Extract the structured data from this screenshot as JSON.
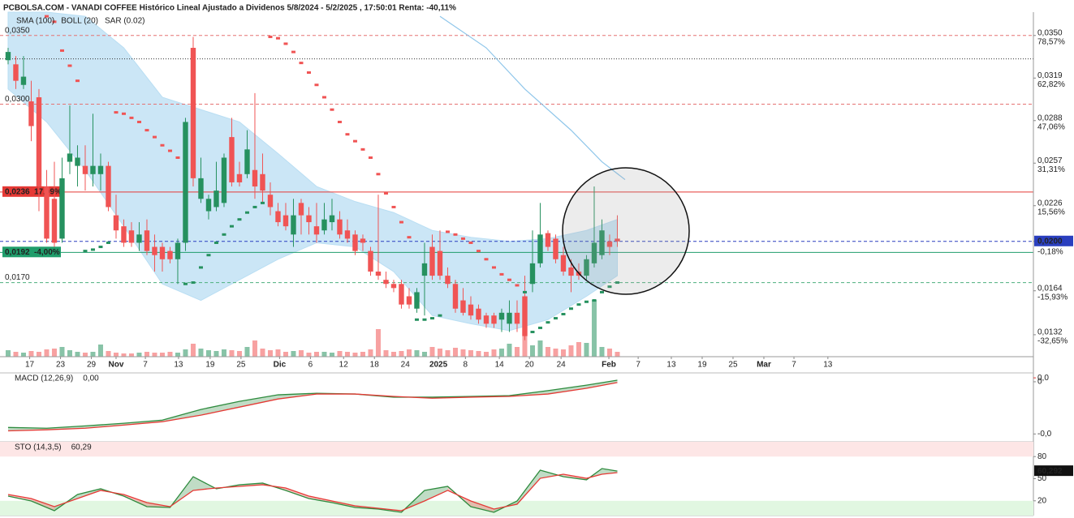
{
  "chart_data": [
    {
      "type": "candlestick",
      "title": "PCBOLSA.COM - VANADI COFFEE Histórico Lineal Ajustado a Dividenos 5/8/2024 - 5/2/2025 , 17:50:01 Renta: -40,11%",
      "up_color": "#26915f",
      "down_color": "#f05454",
      "open": [
        0.0332,
        0.0329,
        0.0314,
        0.0302,
        0.0305,
        0.024,
        0.0231,
        0.0202,
        0.0258,
        0.0255,
        0.0255,
        0.0249,
        0.0249,
        0.0255,
        0.0219,
        0.0211,
        0.0208,
        0.0199,
        0.0208,
        0.0196,
        0.0196,
        0.0193,
        0.0187,
        0.0199,
        0.0341,
        0.0231,
        0.0222,
        0.0225,
        0.0228,
        0.0276,
        0.0249,
        0.0249,
        0.0252,
        0.0249,
        0.0234,
        0.0222,
        0.0219,
        0.0205,
        0.0228,
        0.0219,
        0.0211,
        0.0208,
        0.0214,
        0.0216,
        0.0208,
        0.0205,
        0.0202,
        0.0193,
        0.0178,
        0.0172,
        0.0169,
        0.0169,
        0.016,
        0.0151,
        0.0175,
        0.0196,
        0.0193,
        0.0175,
        0.0169,
        0.0157,
        0.0154,
        0.0151,
        0.0146,
        0.0146,
        0.0143,
        0.014,
        0.0148,
        0.016,
        0.0169,
        0.0184,
        0.0206,
        0.0202,
        0.019,
        0.0181,
        0.0178,
        0.0175,
        0.0184,
        0.019,
        0.02,
        0.0202
      ],
      "high": [
        0.0341,
        0.0335,
        0.0335,
        0.0317,
        0.0311,
        0.0252,
        0.0258,
        0.0261,
        0.0299,
        0.027,
        0.027,
        0.0293,
        0.0264,
        0.0258,
        0.0234,
        0.0216,
        0.0214,
        0.0214,
        0.0216,
        0.0205,
        0.0199,
        0.0196,
        0.0202,
        0.029,
        0.0349,
        0.0261,
        0.0234,
        0.0258,
        0.0264,
        0.029,
        0.0258,
        0.0281,
        0.0308,
        0.0264,
        0.0243,
        0.0228,
        0.0228,
        0.0231,
        0.0231,
        0.0225,
        0.0228,
        0.0228,
        0.0231,
        0.0222,
        0.0216,
        0.0208,
        0.0205,
        0.0196,
        0.0234,
        0.0178,
        0.0172,
        0.0172,
        0.0166,
        0.0166,
        0.0199,
        0.0205,
        0.0208,
        0.0181,
        0.0172,
        0.0166,
        0.016,
        0.0154,
        0.0148,
        0.0148,
        0.0151,
        0.0157,
        0.0157,
        0.0175,
        0.0208,
        0.0228,
        0.0208,
        0.0205,
        0.0196,
        0.0187,
        0.0184,
        0.019,
        0.024,
        0.0216,
        0.0205,
        0.0219
      ],
      "low": [
        0.0329,
        0.0311,
        0.0311,
        0.0273,
        0.0222,
        0.0199,
        0.0196,
        0.0199,
        0.0249,
        0.024,
        0.0237,
        0.024,
        0.0237,
        0.0222,
        0.0202,
        0.0196,
        0.0196,
        0.0193,
        0.019,
        0.0178,
        0.0178,
        0.0184,
        0.0169,
        0.0193,
        0.024,
        0.0228,
        0.0216,
        0.0222,
        0.0225,
        0.024,
        0.024,
        0.0246,
        0.0231,
        0.0228,
        0.0219,
        0.0211,
        0.0208,
        0.0196,
        0.0205,
        0.0205,
        0.0199,
        0.0205,
        0.0208,
        0.0202,
        0.0199,
        0.019,
        0.0193,
        0.0175,
        0.0172,
        0.0166,
        0.0163,
        0.0151,
        0.0151,
        0.0148,
        0.0146,
        0.0172,
        0.0172,
        0.0166,
        0.0148,
        0.0146,
        0.0143,
        0.014,
        0.0137,
        0.0137,
        0.0134,
        0.0134,
        0.0134,
        0.0128,
        0.0163,
        0.0181,
        0.0193,
        0.0184,
        0.0175,
        0.0163,
        0.0172,
        0.0172,
        0.0181,
        0.0187,
        0.019,
        0.0196
      ],
      "close": [
        0.0338,
        0.0317,
        0.032,
        0.0284,
        0.024,
        0.0202,
        0.0199,
        0.0246,
        0.0264,
        0.0261,
        0.0249,
        0.0255,
        0.0255,
        0.0225,
        0.0208,
        0.0199,
        0.0199,
        0.0205,
        0.0193,
        0.019,
        0.0187,
        0.0187,
        0.0199,
        0.0287,
        0.0246,
        0.0246,
        0.0231,
        0.0237,
        0.0261,
        0.0243,
        0.0243,
        0.0267,
        0.024,
        0.0237,
        0.0225,
        0.0214,
        0.0211,
        0.0219,
        0.0219,
        0.0214,
        0.0205,
        0.0216,
        0.0219,
        0.0205,
        0.0202,
        0.0193,
        0.0199,
        0.0178,
        0.0175,
        0.0169,
        0.0166,
        0.0154,
        0.0154,
        0.0163,
        0.0184,
        0.0175,
        0.0175,
        0.0169,
        0.0151,
        0.0148,
        0.0146,
        0.0143,
        0.014,
        0.014,
        0.0148,
        0.0148,
        0.014,
        0.0131,
        0.0184,
        0.0205,
        0.0196,
        0.0187,
        0.0178,
        0.0175,
        0.0175,
        0.0187,
        0.0199,
        0.0208,
        0.0196,
        0.02
      ],
      "volume": [
        8,
        6,
        5,
        7,
        6,
        9,
        10,
        12,
        8,
        6,
        5,
        6,
        15,
        7,
        5,
        4,
        4,
        5,
        6,
        5,
        5,
        6,
        5,
        9,
        16,
        10,
        8,
        7,
        9,
        8,
        7,
        12,
        20,
        10,
        8,
        9,
        6,
        7,
        8,
        5,
        6,
        6,
        5,
        7,
        6,
        5,
        6,
        9,
        34,
        8,
        6,
        7,
        9,
        8,
        6,
        12,
        10,
        8,
        11,
        9,
        8,
        7,
        6,
        9,
        10,
        16,
        12,
        30,
        14,
        20,
        12,
        10,
        9,
        14,
        18,
        17,
        70,
        12,
        10,
        6
      ],
      "xlim": [
        -1.05,
        132.95
      ],
      "xticks": [
        {
          "value": 2.8,
          "label": "17"
        },
        {
          "value": 6.8,
          "label": "23"
        },
        {
          "value": 10.8,
          "label": "29"
        },
        {
          "value": 14,
          "label": "Nov"
        },
        {
          "value": 17.8,
          "label": "7"
        },
        {
          "value": 22.1,
          "label": "13"
        },
        {
          "value": 26.2,
          "label": "19"
        },
        {
          "value": 30.2,
          "label": "25"
        },
        {
          "value": 35.2,
          "label": "Dic"
        },
        {
          "value": 39.2,
          "label": "6"
        },
        {
          "value": 43.5,
          "label": "12"
        },
        {
          "value": 47.5,
          "label": "18"
        },
        {
          "value": 51.5,
          "label": "24"
        },
        {
          "value": 55.8,
          "label": "2025"
        },
        {
          "value": 59.3,
          "label": "8"
        },
        {
          "value": 63.7,
          "label": "14"
        },
        {
          "value": 67.6,
          "label": "20"
        },
        {
          "value": 71.7,
          "label": "24"
        },
        {
          "value": 77.9,
          "label": "Feb"
        },
        {
          "value": 81.7,
          "label": "7"
        },
        {
          "value": 86,
          "label": "13"
        },
        {
          "value": 90,
          "label": "19"
        },
        {
          "value": 94,
          "label": "25"
        },
        {
          "value": 98,
          "label": "Mar"
        },
        {
          "value": 101.9,
          "label": "7"
        },
        {
          "value": 106.3,
          "label": "13"
        }
      ],
      "ylim": [
        0.0116,
        0.0367
      ],
      "yticks": [
        {
          "value": 0.035,
          "label": "0,0350"
        },
        {
          "value": 0.0319,
          "label": "0,0319"
        },
        {
          "value": 0.0288,
          "label": "0,0288"
        },
        {
          "value": 0.0257,
          "label": "0,0257"
        },
        {
          "value": 0.0226,
          "label": "0,0226"
        },
        {
          "value": 0.02,
          "label": "0,0200"
        },
        {
          "value": 0.0164,
          "label": "0,0164"
        },
        {
          "value": 0.0132,
          "label": "0,0132"
        }
      ],
      "ytick_sublabels": [
        "78,57%",
        "62,82%",
        "47,06%",
        "31,31%",
        "15,56%",
        "-0,18%",
        "-15,93%",
        "-32,65%"
      ],
      "highlight_tick": 5,
      "levels": [
        {
          "value": 0.035,
          "label": "0,0350",
          "color": "#e57373",
          "style": "dashed"
        },
        {
          "value": 0.0333,
          "color": "#333333",
          "style": "dotted"
        },
        {
          "value": 0.03,
          "label": "0,0300",
          "color": "#e57373",
          "style": "dashed"
        },
        {
          "value": 0.0236,
          "label": "0,0236",
          "note": "17,99%",
          "color": "#e53935",
          "style": "solid"
        },
        {
          "value": 0.02,
          "color": "#2a3fbf",
          "style": "dashed"
        },
        {
          "value": 0.0192,
          "label": "0,0192",
          "note": "-4,00%",
          "color": "#1f9d6b",
          "style": "solid"
        },
        {
          "value": 0.017,
          "label": "0,0170",
          "color": "#4caf7d",
          "style": "dashed"
        }
      ],
      "overlays": [
        {
          "name": "SMA (100)",
          "type": "line",
          "color": "#8fc6ea",
          "x": [
            56,
            62,
            67,
            73,
            77,
            80
          ],
          "values": [
            0.0364,
            0.0341,
            0.0311,
            0.0281,
            0.0258,
            0.0245
          ]
        },
        {
          "name": "BOLL (20)",
          "type": "band",
          "color": "#b9def3",
          "x": [
            0,
            5,
            10,
            15,
            20,
            25,
            30,
            35,
            40,
            45,
            50,
            55,
            60,
            65,
            70,
            75,
            79
          ],
          "upper": [
            0.0367,
            0.0367,
            0.0364,
            0.0341,
            0.0305,
            0.0296,
            0.0287,
            0.0264,
            0.024,
            0.0229,
            0.0221,
            0.0208,
            0.0203,
            0.02,
            0.0202,
            0.0208,
            0.0216
          ],
          "lower": [
            0.0311,
            0.0287,
            0.0252,
            0.0211,
            0.0169,
            0.0157,
            0.0172,
            0.0187,
            0.0199,
            0.0196,
            0.0178,
            0.0146,
            0.014,
            0.0135,
            0.0143,
            0.016,
            0.0175
          ]
        },
        {
          "name": "SAR (0.02)",
          "type": "dots",
          "color": "#1e8e3e",
          "values": [
            null,
            null,
            null,
            null,
            null,
            0.0364,
            0.036,
            0.0339,
            0.0328,
            0.0317,
            0.0193,
            0.0194,
            0.0196,
            0.0199,
            0.0294,
            0.0293,
            0.029,
            0.0287,
            0.0281,
            0.0276,
            0.027,
            0.0266,
            0.0261,
            0.0169,
            0.017,
            0.0181,
            0.019,
            0.0199,
            0.0205,
            0.0211,
            0.0216,
            0.0221,
            0.0225,
            0.0228,
            0.0349,
            0.0348,
            0.0344,
            0.0338,
            0.033,
            0.0323,
            0.0314,
            0.0305,
            0.0296,
            0.0287,
            0.0278,
            0.0273,
            0.0267,
            0.0261,
            0.0249,
            0.0235,
            0.0225,
            0.0214,
            0.0203,
            0.0143,
            0.0143,
            0.0144,
            0.0146,
            0.0207,
            0.0205,
            0.0202,
            0.0199,
            0.0193,
            0.0187,
            0.0181,
            0.0176,
            0.0172,
            0.0168,
            0.0163,
            0.0134,
            0.0137,
            0.0141,
            0.0144,
            0.0147,
            0.0151,
            0.0154,
            0.0156,
            0.0157,
            0.0163,
            0.0167,
            0.017
          ]
        }
      ]
    },
    {
      "type": "macd",
      "label": "MACD (12,26,9)",
      "value_label": "0,00",
      "x": [
        0,
        5,
        10,
        15,
        20,
        25,
        30,
        35,
        40,
        45,
        50,
        55,
        60,
        65,
        70,
        75,
        79
      ],
      "series": [
        {
          "color": "#2e8b3e",
          "values": [
            -0.00175,
            -0.00178,
            -0.00169,
            -0.00159,
            -0.00147,
            -0.00106,
            -0.00075,
            -0.0005,
            -0.00044,
            -0.00047,
            -0.00059,
            -0.00059,
            -0.00056,
            -0.00053,
            -0.00034,
            -0.00013,
            6e-05
          ]
        },
        {
          "color": "#e53935",
          "values": [
            -0.00188,
            -0.00184,
            -0.00178,
            -0.00166,
            -0.00153,
            -0.00128,
            -0.00097,
            -0.00066,
            -0.00047,
            -0.00047,
            -0.00056,
            -0.00063,
            -0.00059,
            -0.00056,
            -0.00047,
            -0.00025,
            -3e-05
          ]
        }
      ],
      "ylim": [
        -0.0023,
        0.00034
      ],
      "yticks": [
        {
          "value": 0,
          "label": "0"
        },
        {
          "value": -0.002,
          "label": "-0,0"
        }
      ],
      "last_label": {
        "value": 0.00015,
        "label": "0,0",
        "color": "#e53935"
      }
    },
    {
      "type": "stochastic",
      "label": "STO (14,3,5)",
      "value_label": "60,29",
      "x": [
        0,
        3,
        6,
        9,
        12,
        15,
        18,
        21,
        24,
        27,
        30,
        33,
        36,
        39,
        42,
        45,
        48,
        51,
        54,
        57,
        60,
        63,
        66,
        69,
        72,
        75,
        77,
        79
      ],
      "series": [
        {
          "color": "#2e8b3e",
          "values": [
            26.4,
            19.8,
            6.6,
            28.6,
            36.3,
            26.4,
            12.1,
            11.0,
            52.7,
            36.3,
            41.8,
            44.0,
            34.1,
            23.1,
            17.6,
            11.0,
            8.8,
            4.4,
            34.1,
            39.6,
            12.1,
            4.4,
            19.8,
            61.5,
            52.7,
            48.4,
            63.7,
            60.3
          ]
        },
        {
          "color": "#e53935",
          "values": [
            28.6,
            23.1,
            12.1,
            23.1,
            34.1,
            28.6,
            17.6,
            12.1,
            34.1,
            37.4,
            39.6,
            41.8,
            37.4,
            26.4,
            19.8,
            13.2,
            9.9,
            6.6,
            19.8,
            34.1,
            19.8,
            8.8,
            15.4,
            50.5,
            56.0,
            50.5,
            56.0,
            58.2
          ]
        }
      ],
      "ylim": [
        0,
        100
      ],
      "yticks": [
        20,
        50,
        80
      ],
      "zones": [
        {
          "from": 80,
          "to": 100,
          "color": "#fde6e6"
        },
        {
          "from": 0,
          "to": 20,
          "color": "#e1f7e1"
        }
      ],
      "last_label": {
        "value": 60.292,
        "label": "60,292",
        "color": "#111111"
      }
    }
  ]
}
